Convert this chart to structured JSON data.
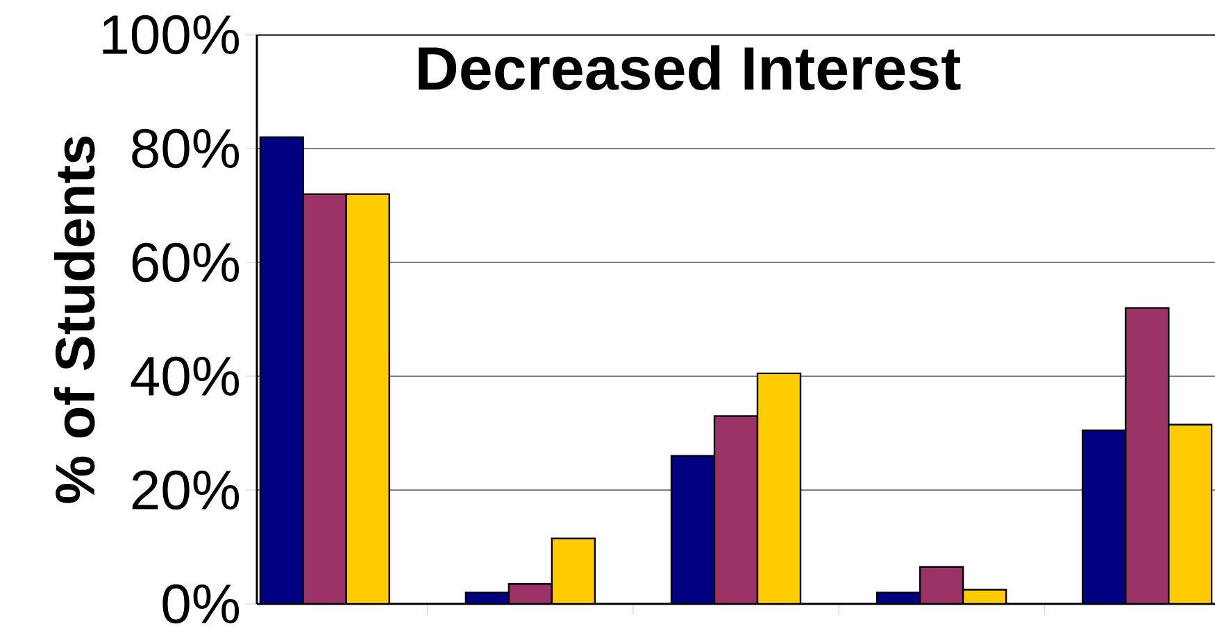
{
  "chart_data": {
    "type": "bar",
    "title": "Decreased Interest",
    "ylabel": "% of Students",
    "categories": [
      null,
      null,
      null,
      null,
      null
    ],
    "series": [
      {
        "color": "#000080",
        "values": [
          82,
          2,
          26,
          2,
          30.5
        ]
      },
      {
        "color": "#993366",
        "values": [
          72,
          3.5,
          33,
          6.5,
          52
        ]
      },
      {
        "color": "#ffcc00",
        "values": [
          72,
          11.5,
          40.5,
          2.5,
          31.5
        ]
      }
    ],
    "ylim": [
      0,
      100
    ],
    "yticks": [
      {
        "value": 0,
        "label": "0%"
      },
      {
        "value": 20,
        "label": "20%"
      },
      {
        "value": 40,
        "label": "40%"
      },
      {
        "value": 60,
        "label": "60%"
      },
      {
        "value": 80,
        "label": "80%"
      },
      {
        "value": 100,
        "label": "100%"
      }
    ],
    "grid": "y",
    "tick_labels": "y"
  }
}
